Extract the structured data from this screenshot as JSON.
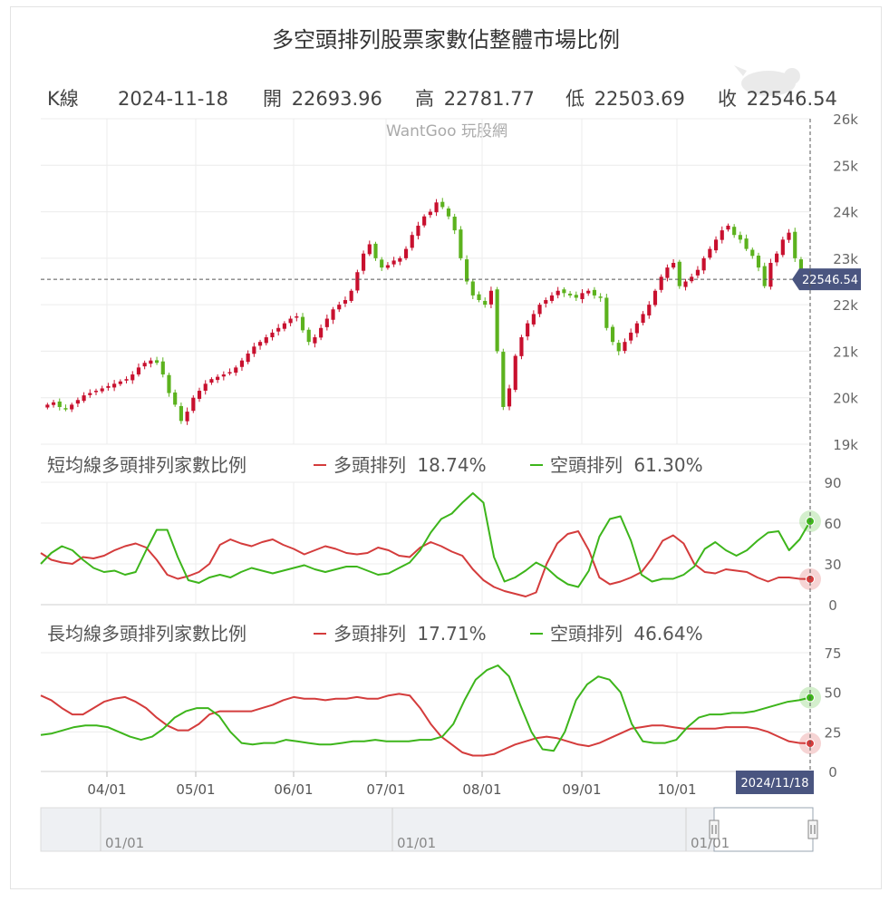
{
  "title": "多空頭排列股票家數佔整體市場比例",
  "watermark": "WantGoo 玩股網",
  "ohlc_bar": {
    "kline_label": "K線",
    "date": "2024-11-18",
    "open_label": "開",
    "open": "22693.96",
    "high_label": "高",
    "high": "22781.77",
    "low_label": "低",
    "low": "22503.69",
    "close_label": "收",
    "close": "22546.54"
  },
  "price_tag": "22546.54",
  "date_tag": "2024/11/18",
  "short_panel": {
    "label": "短均線多頭排列家數比例",
    "bull_label": "多頭排列",
    "bull_value": "18.74%",
    "bear_label": "空頭排列",
    "bear_value": "61.30%"
  },
  "long_panel": {
    "label": "長均線多頭排列家數比例",
    "bull_label": "多頭排列",
    "bull_value": "17.71%",
    "bear_label": "空頭排列",
    "bear_value": "46.64%"
  },
  "navigator_labels": [
    "01/01",
    "01/01",
    "01/01"
  ],
  "colors": {
    "up": "#c8102e",
    "down": "#5cb21e",
    "bull": "#d43c3c",
    "bear": "#3db51b",
    "tag": "#4a5580"
  },
  "chart_data": [
    {
      "type": "candlestick",
      "ylim": [
        19000,
        26000
      ],
      "y_ticks": [
        19000,
        20000,
        21000,
        22000,
        23000,
        24000,
        25000,
        26000
      ],
      "y_tick_labels": [
        "19k",
        "20k",
        "21k",
        "22k",
        "23k",
        "24k",
        "25k",
        "26k"
      ],
      "x_tick_labels": [
        "04/01",
        "05/01",
        "06/01",
        "07/01",
        "08/01",
        "09/01",
        "10/01"
      ],
      "close_line": 22546.54,
      "closes": [
        19850,
        19900,
        19800,
        19750,
        19850,
        19950,
        20050,
        20100,
        20150,
        20200,
        20250,
        20300,
        20350,
        20400,
        20500,
        20650,
        20750,
        20800,
        20750,
        20500,
        20100,
        19850,
        19500,
        19700,
        20000,
        20150,
        20300,
        20400,
        20450,
        20500,
        20550,
        20650,
        20800,
        20950,
        21100,
        21200,
        21300,
        21400,
        21500,
        21600,
        21700,
        21750,
        21450,
        21200,
        21300,
        21500,
        21700,
        21900,
        22000,
        22100,
        22300,
        22700,
        23100,
        23300,
        23000,
        22800,
        22850,
        22950,
        23000,
        23200,
        23500,
        23700,
        23900,
        24000,
        24200,
        24100,
        23900,
        23600,
        23000,
        22500,
        22200,
        22100,
        22000,
        22300,
        21000,
        19800,
        20200,
        20900,
        21300,
        21600,
        21800,
        22000,
        22100,
        22200,
        22300,
        22250,
        22200,
        22150,
        22250,
        22300,
        22200,
        22150,
        21500,
        21200,
        21000,
        21200,
        21400,
        21600,
        21800,
        22000,
        22300,
        22600,
        22800,
        22900,
        22400,
        22500,
        22600,
        22750,
        23000,
        23200,
        23400,
        23600,
        23700,
        23500,
        23400,
        23200,
        23050,
        22800,
        22400,
        22900,
        23100,
        23400,
        23550,
        23000,
        22700,
        22546
      ]
    },
    {
      "type": "line",
      "ylabel": "",
      "ylim": [
        0,
        90
      ],
      "y_ticks": [
        0,
        30,
        60,
        90
      ],
      "x_tick_labels": [
        "04/01",
        "05/01",
        "06/01",
        "07/01",
        "08/01",
        "09/01",
        "10/01"
      ],
      "series": [
        {
          "name": "多頭排列",
          "color": "#d43c3c",
          "values": [
            38,
            33,
            31,
            30,
            35,
            34,
            36,
            40,
            43,
            45,
            42,
            33,
            22,
            19,
            21,
            24,
            30,
            44,
            48,
            45,
            43,
            46,
            48,
            44,
            41,
            37,
            40,
            43,
            41,
            38,
            37,
            38,
            42,
            40,
            36,
            35,
            42,
            46,
            43,
            39,
            36,
            26,
            18,
            13,
            10,
            8,
            6,
            9,
            30,
            45,
            52,
            54,
            40,
            20,
            15,
            17,
            20,
            24,
            34,
            47,
            51,
            45,
            30,
            24,
            23,
            26,
            25,
            24,
            20,
            17,
            20,
            20,
            19,
            18.74
          ]
        },
        {
          "name": "空頭排列",
          "color": "#3db51b",
          "values": [
            30,
            38,
            43,
            40,
            33,
            27,
            24,
            25,
            22,
            24,
            40,
            55,
            55,
            35,
            18,
            16,
            20,
            22,
            20,
            24,
            27,
            25,
            23,
            25,
            27,
            29,
            26,
            24,
            26,
            28,
            28,
            25,
            22,
            23,
            27,
            31,
            40,
            53,
            63,
            67,
            75,
            82,
            75,
            35,
            17,
            20,
            25,
            31,
            27,
            20,
            15,
            13,
            25,
            50,
            63,
            65,
            47,
            22,
            17,
            19,
            19,
            22,
            28,
            41,
            46,
            40,
            36,
            40,
            47,
            53,
            54,
            40,
            48,
            61.3
          ]
        }
      ]
    },
    {
      "type": "line",
      "ylabel": "",
      "ylim": [
        0,
        75
      ],
      "y_ticks": [
        0,
        25,
        50,
        75
      ],
      "x_tick_labels": [
        "04/01",
        "05/01",
        "06/01",
        "07/01",
        "08/01",
        "09/01",
        "10/01"
      ],
      "series": [
        {
          "name": "多頭排列",
          "color": "#d43c3c",
          "values": [
            48,
            45,
            40,
            36,
            36,
            40,
            44,
            46,
            47,
            44,
            40,
            34,
            29,
            26,
            26,
            30,
            36,
            38,
            38,
            38,
            38,
            40,
            42,
            45,
            47,
            46,
            46,
            45,
            46,
            46,
            47,
            46,
            46,
            48,
            49,
            48,
            40,
            30,
            22,
            17,
            12,
            10,
            10,
            11,
            14,
            17,
            19,
            21,
            22,
            21,
            19,
            17,
            16,
            18,
            21,
            24,
            27,
            28,
            29,
            29,
            28,
            27,
            27,
            27,
            27,
            28,
            28,
            28,
            27,
            25,
            22,
            19,
            18,
            17.71
          ]
        },
        {
          "name": "空頭排列",
          "color": "#3db51b",
          "values": [
            23,
            24,
            26,
            28,
            29,
            29,
            28,
            25,
            22,
            20,
            22,
            27,
            34,
            38,
            40,
            40,
            35,
            25,
            18,
            17,
            18,
            18,
            20,
            19,
            18,
            17,
            17,
            18,
            19,
            19,
            20,
            19,
            19,
            19,
            20,
            20,
            22,
            30,
            45,
            58,
            64,
            67,
            60,
            42,
            25,
            14,
            13,
            25,
            45,
            55,
            60,
            58,
            50,
            30,
            19,
            18,
            18,
            20,
            28,
            34,
            36,
            36,
            37,
            37,
            38,
            40,
            42,
            44,
            45,
            46.64
          ]
        }
      ]
    }
  ]
}
